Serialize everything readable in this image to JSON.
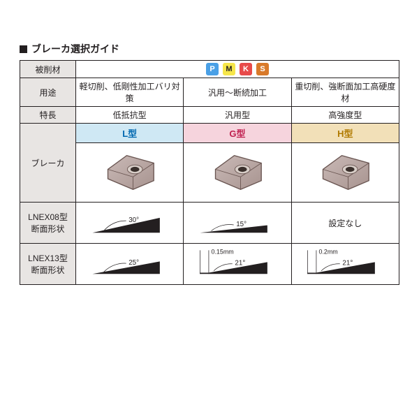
{
  "title": "ブレーカ選択ガイド",
  "rowLabels": {
    "workpiece": "被削材",
    "use": "用途",
    "feature": "特長",
    "breaker": "ブレーカ",
    "lnex08": "LNEX08型\n断面形状",
    "lnex13": "LNEX13型\n断面形状"
  },
  "chips": [
    {
      "letter": "P",
      "bg": "#4aa0e6",
      "fg": "#ffffff"
    },
    {
      "letter": "M",
      "bg": "#f6e64a",
      "fg": "#231f20"
    },
    {
      "letter": "K",
      "bg": "#e84a4a",
      "fg": "#ffffff"
    },
    {
      "letter": "S",
      "bg": "#d97a2a",
      "fg": "#ffffff"
    }
  ],
  "columns": [
    {
      "use": "軽切削、低剛性加工バリ対策",
      "feature": "低抵抗型",
      "type": "L型",
      "type_bg": "#cfe8f4",
      "type_fg": "#0068b0",
      "lnex08": {
        "angle": "30°",
        "slope": 24
      },
      "lnex13": {
        "angle": "25°",
        "slope": 20
      }
    },
    {
      "use": "汎用～断続加工",
      "feature": "汎用型",
      "type": "G型",
      "type_bg": "#f6d4dd",
      "type_fg": "#c02050",
      "lnex08": {
        "angle": "15°",
        "slope": 12
      },
      "lnex13": {
        "angle": "21°",
        "slope": 17,
        "land": "0.15mm"
      }
    },
    {
      "use": "重切削、強断面加工高硬度材",
      "feature": "高強度型",
      "type": "H型",
      "type_bg": "#f2e0b8",
      "type_fg": "#b07a00",
      "lnex08": {
        "text": "設定なし"
      },
      "lnex13": {
        "angle": "21°",
        "slope": 17,
        "land": "0.2mm"
      }
    }
  ],
  "insert_colors": {
    "body1": "#c9b9b6",
    "body2": "#a89490",
    "edge": "#6a5652",
    "hole": "#3a302c",
    "rim": "#d8cec8"
  }
}
